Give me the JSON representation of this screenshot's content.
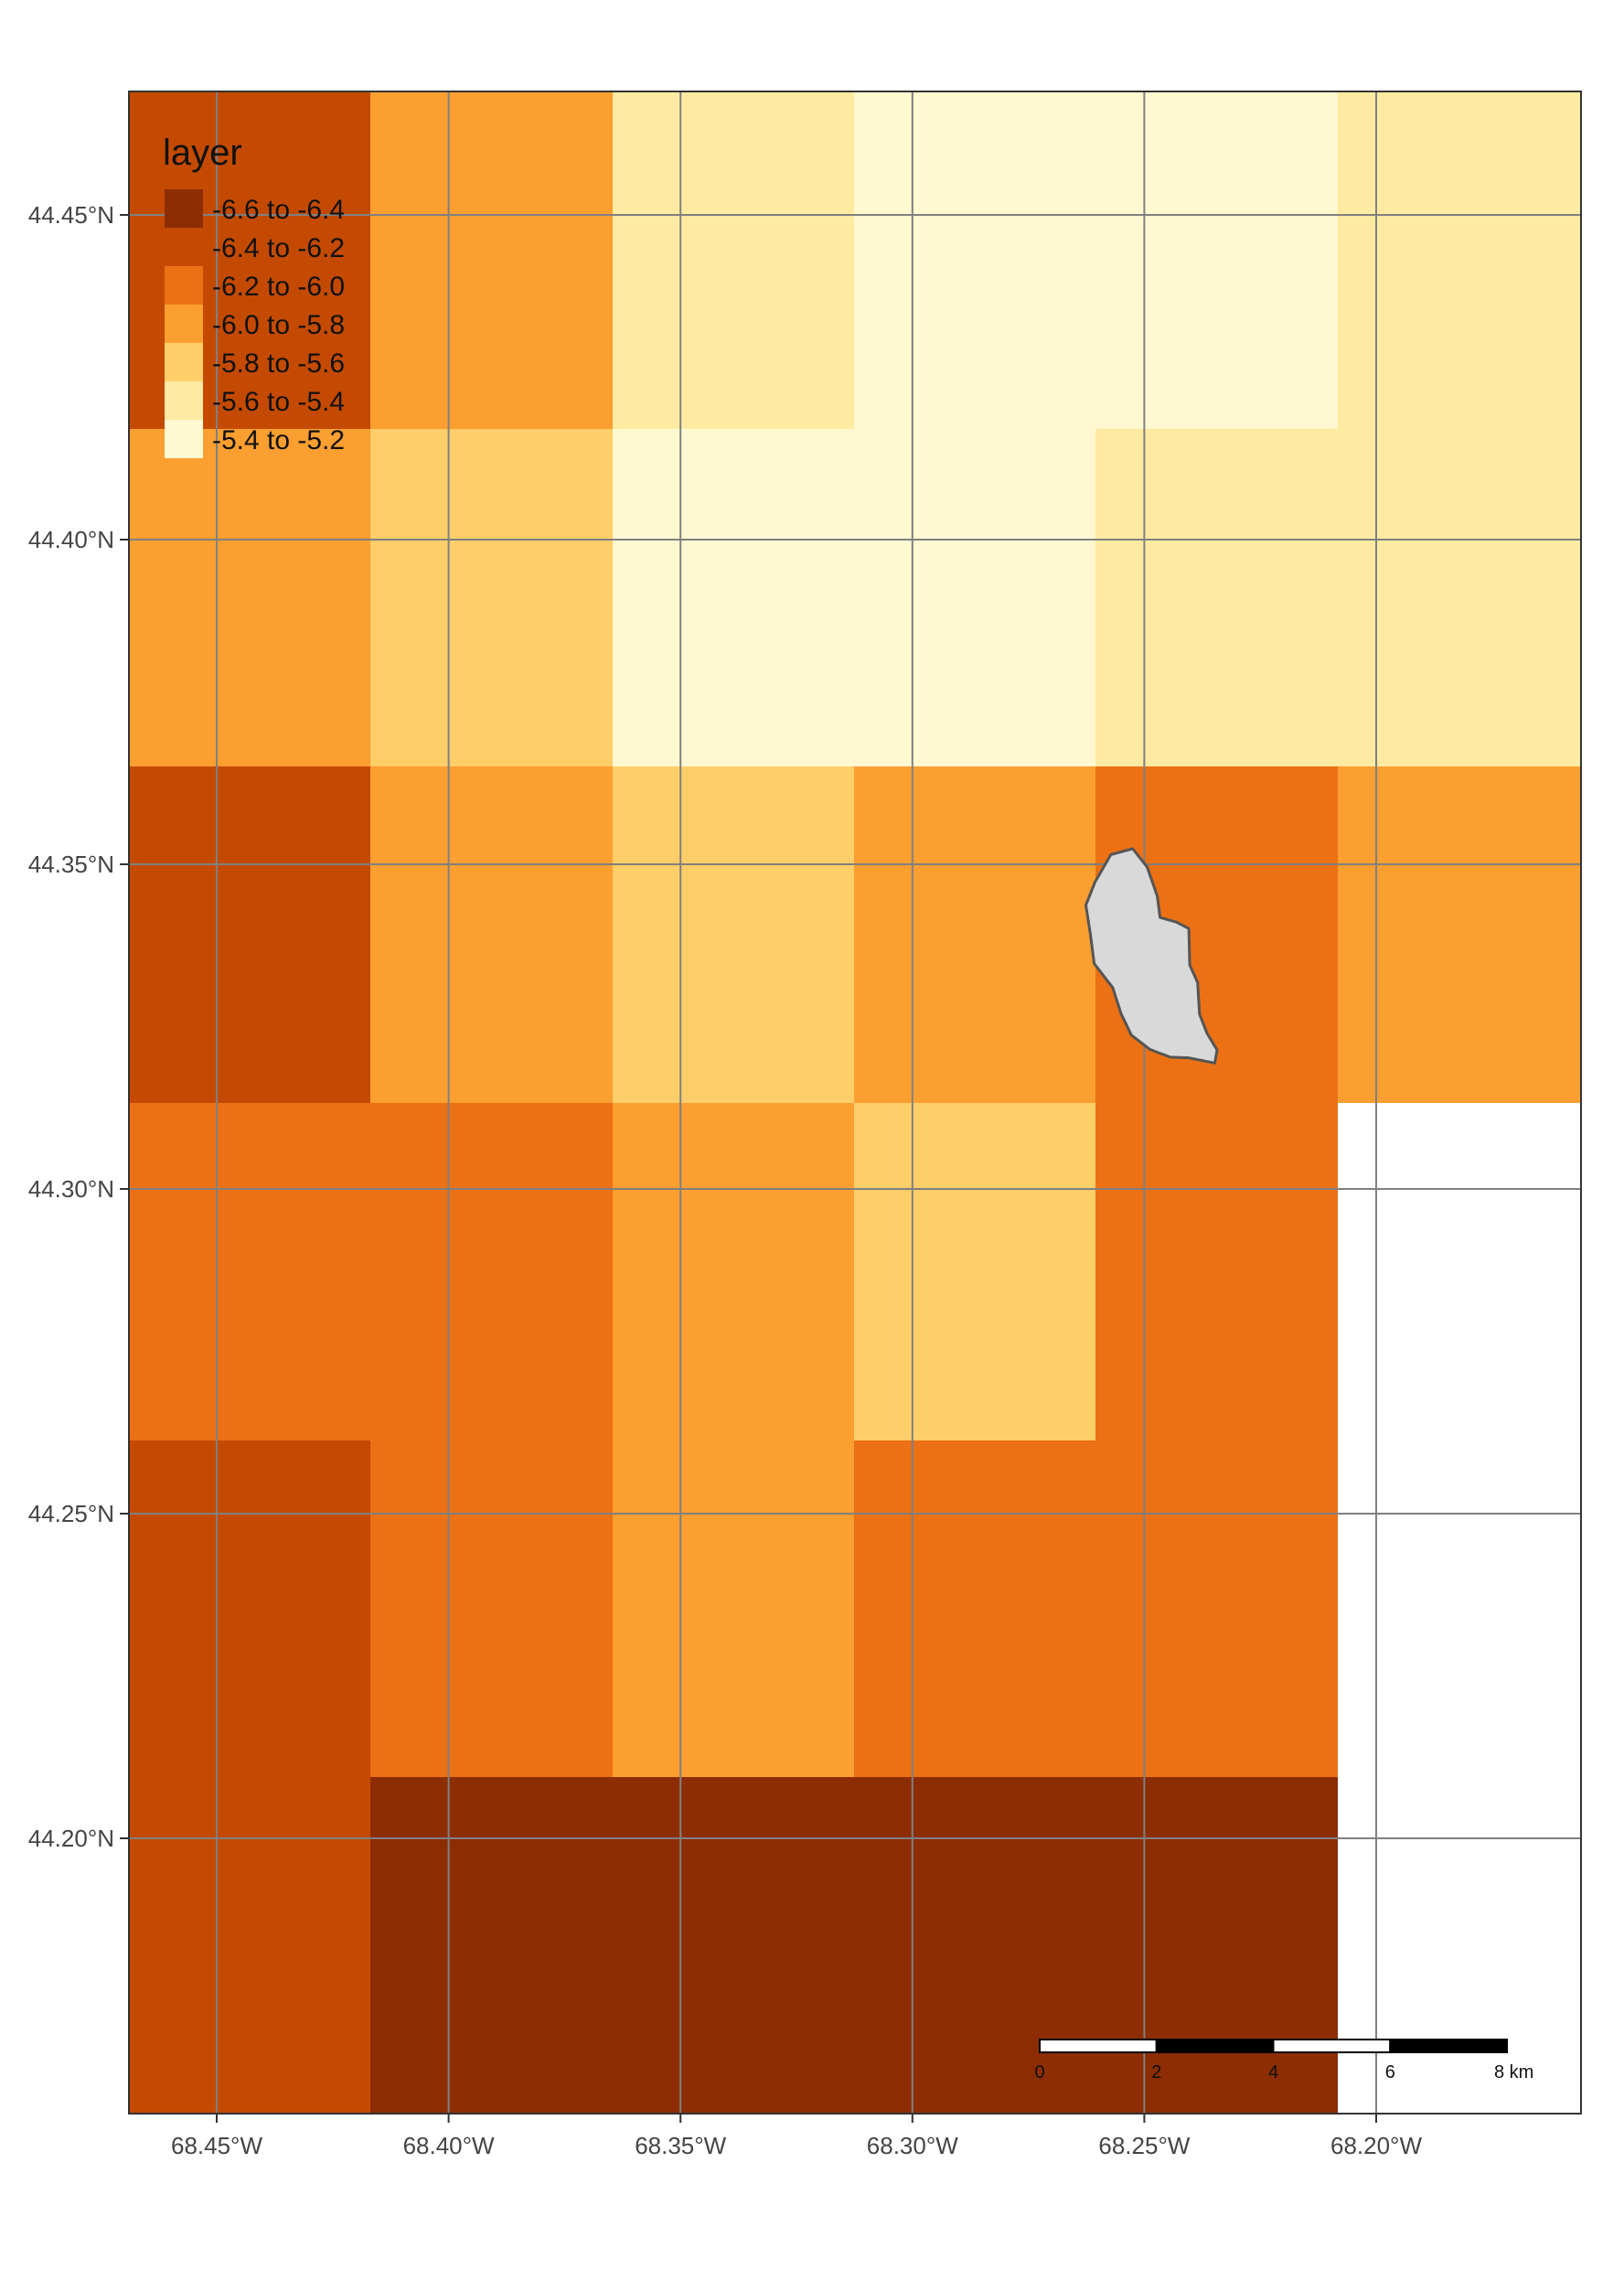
{
  "legend": {
    "title": "layer",
    "entries": [
      {
        "label": "-6.6 to -6.4",
        "color": "#8c2d04"
      },
      {
        "label": "-6.4 to -6.2",
        "color": "#c44a02"
      },
      {
        "label": "-6.2 to -6.0",
        "color": "#ec7014"
      },
      {
        "label": "-6.0 to -5.8",
        "color": "#fb9f31"
      },
      {
        "label": "-5.8 to -5.6",
        "color": "#fece69"
      },
      {
        "label": "-5.6 to -5.4",
        "color": "#feeba1"
      },
      {
        "label": "-5.4 to -5.2",
        "color": "#fff8d1"
      }
    ]
  },
  "axes": {
    "x_ticks": [
      {
        "value": -68.45,
        "label": "68.45°W"
      },
      {
        "value": -68.4,
        "label": "68.40°W"
      },
      {
        "value": -68.35,
        "label": "68.35°W"
      },
      {
        "value": -68.3,
        "label": "68.30°W"
      },
      {
        "value": -68.25,
        "label": "68.25°W"
      },
      {
        "value": -68.2,
        "label": "68.20°W"
      }
    ],
    "y_ticks": [
      {
        "value": 44.45,
        "label": "44.45°N"
      },
      {
        "value": 44.4,
        "label": "44.40°N"
      },
      {
        "value": 44.35,
        "label": "44.35°N"
      },
      {
        "value": 44.3,
        "label": "44.30°N"
      },
      {
        "value": 44.25,
        "label": "44.25°N"
      },
      {
        "value": 44.2,
        "label": "44.20°N"
      }
    ],
    "grid": true,
    "grid_color": "#808080"
  },
  "raster": {
    "columns": 6,
    "rows": 6,
    "no_data": -1,
    "classes_by_row_top_to_bottom": [
      [
        1,
        3,
        5,
        6,
        6,
        5
      ],
      [
        3,
        4,
        6,
        6,
        5,
        5
      ],
      [
        1,
        3,
        4,
        3,
        2,
        3
      ],
      [
        2,
        2,
        3,
        4,
        2,
        -1
      ],
      [
        1,
        2,
        3,
        2,
        2,
        -1
      ],
      [
        1,
        0,
        0,
        0,
        0,
        -1
      ]
    ]
  },
  "watershed": {
    "fill": "#d9d9d9",
    "stroke": "#555555",
    "outline_lonlat": [
      [
        -68.2606,
        44.3473
      ],
      [
        -68.2572,
        44.3515
      ],
      [
        -68.2525,
        44.3524
      ],
      [
        -68.2494,
        44.3496
      ],
      [
        -68.2472,
        44.3451
      ],
      [
        -68.2466,
        44.3418
      ],
      [
        -68.2431,
        44.3411
      ],
      [
        -68.2404,
        44.3401
      ],
      [
        -68.2402,
        44.3345
      ],
      [
        -68.2385,
        44.3318
      ],
      [
        -68.2381,
        44.3269
      ],
      [
        -68.2365,
        44.324
      ],
      [
        -68.2343,
        44.3214
      ],
      [
        -68.2348,
        44.3194
      ],
      [
        -68.2405,
        44.3202
      ],
      [
        -68.2444,
        44.3203
      ],
      [
        -68.2488,
        44.3215
      ],
      [
        -68.2528,
        44.3237
      ],
      [
        -68.255,
        44.327
      ],
      [
        -68.2568,
        44.331
      ],
      [
        -68.2608,
        44.3347
      ],
      [
        -68.2616,
        44.3391
      ],
      [
        -68.2626,
        44.3437
      ]
    ]
  },
  "scale_bar": {
    "labels": [
      "0",
      "2",
      "4",
      "6",
      "8 km"
    ]
  }
}
